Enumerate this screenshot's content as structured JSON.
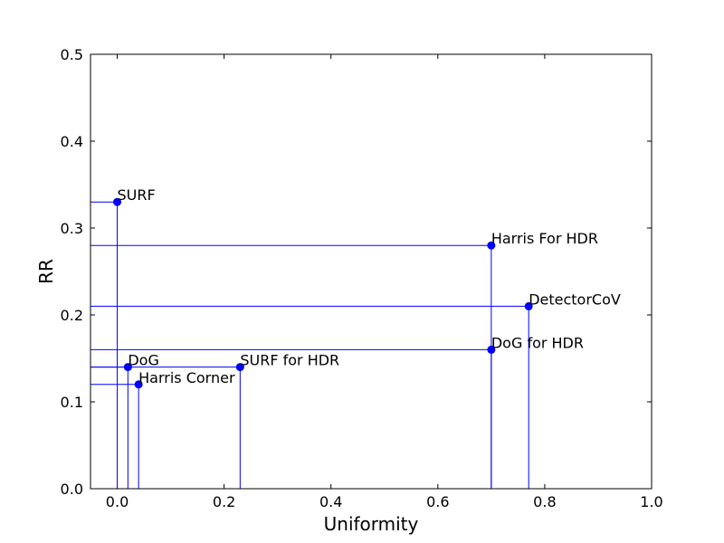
{
  "chart_data": {
    "type": "scatter",
    "xlabel": "Uniformity",
    "ylabel": "RR",
    "xlim": [
      -0.05,
      1.0
    ],
    "ylim": [
      0,
      0.5
    ],
    "xticks": [
      {
        "value": 0,
        "label": "0.0"
      },
      0.2,
      0.4,
      0.6,
      0.8,
      {
        "value": 1.0,
        "label": "1.0"
      }
    ],
    "yticks": [
      {
        "value": 0,
        "label": "0.0"
      },
      0.1,
      0.2,
      0.3,
      0.4,
      0.5
    ],
    "color": "#0000ff",
    "labels": [
      "SURF",
      "Harris For HDR",
      "DetectorCoV",
      "DoG for HDR",
      "DoG",
      "SURF for HDR",
      "Harris Corner"
    ],
    "x": [
      0.0,
      0.7,
      0.77,
      0.7,
      0.02,
      0.23,
      0.04
    ],
    "y": [
      0.33,
      0.28,
      0.21,
      0.16,
      0.14,
      0.14,
      0.12
    ]
  }
}
